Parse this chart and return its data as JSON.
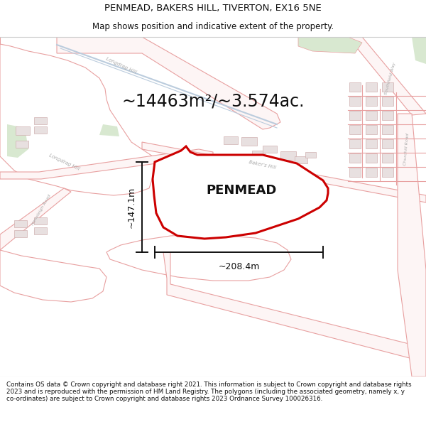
{
  "title_line1": "PENMEAD, BAKERS HILL, TIVERTON, EX16 5NE",
  "title_line2": "Map shows position and indicative extent of the property.",
  "area_text": "~14463m²/~3.574ac.",
  "property_label": "PENMEAD",
  "dim_width": "~208.4m",
  "dim_height": "~147.1m",
  "footer_text": "Contains OS data © Crown copyright and database right 2021. This information is subject to Crown copyright and database rights 2023 and is reproduced with the permission of HM Land Registry. The polygons (including the associated geometry, namely x, y co-ordinates) are subject to Crown copyright and database rights 2023 Ordnance Survey 100026316.",
  "bg_color": "#ffffff",
  "map_bg": "#fafafa",
  "property_fill": "#ffffff",
  "property_edge": "#cc0000",
  "road_outline": "#e8a0a0",
  "road_fill": "#fdf5f5",
  "road_label": "#aaaaaa",
  "building_fill": "#e8e0e0",
  "building_edge": "#d0b0b0",
  "green_fill": "#d8e8d0",
  "dim_line_color": "#111111",
  "title_fontsize": 9.5,
  "subtitle_fontsize": 8.5,
  "area_fontsize": 17,
  "label_fontsize": 13,
  "footer_fontsize": 6.3
}
